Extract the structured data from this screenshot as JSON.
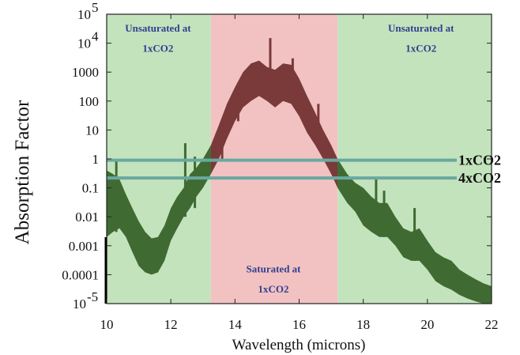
{
  "chart_data": {
    "type": "area",
    "title": "",
    "xlabel": "Wavelength (microns)",
    "ylabel": "Absorption Factor",
    "xlim": [
      10,
      22
    ],
    "ylim": [
      1e-05,
      100000.0
    ],
    "yscale": "log",
    "grid": false,
    "x_ticks": [
      {
        "value": 10,
        "label": "10"
      },
      {
        "value": 12,
        "label": "12"
      },
      {
        "value": 14,
        "label": "14"
      },
      {
        "value": 16,
        "label": "16"
      },
      {
        "value": 18,
        "label": "18"
      },
      {
        "value": 20,
        "label": "20"
      },
      {
        "value": 22,
        "label": "22"
      }
    ],
    "y_ticks": [
      {
        "value": 100000,
        "base": "10",
        "exp": "5"
      },
      {
        "value": 10000,
        "base": "10",
        "exp": "4"
      },
      {
        "value": 1000,
        "label": "1000"
      },
      {
        "value": 100,
        "label": "100"
      },
      {
        "value": 10,
        "label": "10"
      },
      {
        "value": 1,
        "label": "1"
      },
      {
        "value": 0.1,
        "label": "0.1"
      },
      {
        "value": 0.01,
        "label": "0.01"
      },
      {
        "value": 0.001,
        "label": "0.001"
      },
      {
        "value": 0.0001,
        "label": "0.0001"
      },
      {
        "value": 1e-05,
        "base": "10",
        "exp": "-5"
      }
    ],
    "regions": [
      {
        "x_start": 10,
        "x_end": 13.25,
        "color": "#c3e3bd",
        "label_lines": [
          "Unsaturated at",
          "1xCO2"
        ],
        "label_x": 11.6,
        "label_y": [
          25000,
          5000
        ]
      },
      {
        "x_start": 13.25,
        "x_end": 17.2,
        "color": "#f2c2c2",
        "label_lines": [
          "Saturated at",
          "1xCO2"
        ],
        "label_x": 15.2,
        "label_y": [
          0.00012,
          2.4e-05
        ]
      },
      {
        "x_start": 17.2,
        "x_end": 22,
        "color": "#c3e3bd",
        "label_lines": [
          "Unsaturated at",
          "1xCO2"
        ],
        "label_x": 19.8,
        "label_y": [
          25000,
          5000
        ]
      }
    ],
    "reference_lines": [
      {
        "name": "1xCO2",
        "y": 0.9,
        "label": "1xCO2",
        "color": "#6aa8a0"
      },
      {
        "name": "4xCO2",
        "y": 0.22,
        "label": "4xCO2",
        "color": "#6aa8a0"
      }
    ],
    "spectrum": {
      "color_unsaturated": "#3f6b33",
      "color_saturated": "#7a3a3a",
      "x": [
        10.0,
        10.2,
        10.4,
        10.6,
        10.8,
        11.0,
        11.2,
        11.4,
        11.6,
        11.8,
        12.0,
        12.2,
        12.4,
        12.6,
        12.8,
        13.0,
        13.25,
        13.5,
        13.75,
        14.0,
        14.25,
        14.5,
        14.75,
        15.0,
        15.25,
        15.5,
        15.75,
        16.0,
        16.25,
        16.5,
        16.75,
        17.0,
        17.2,
        17.5,
        17.75,
        18.0,
        18.25,
        18.5,
        18.75,
        19.0,
        19.25,
        19.5,
        19.75,
        20.0,
        20.25,
        20.5,
        20.75,
        21.0,
        21.25,
        21.5,
        21.75,
        22.0
      ],
      "upper": [
        0.4,
        0.3,
        0.2,
        0.06,
        0.02,
        0.007,
        0.003,
        0.0018,
        0.002,
        0.005,
        0.02,
        0.05,
        0.1,
        0.3,
        0.5,
        1,
        3,
        15,
        80,
        300,
        1000,
        2000,
        2500,
        1500,
        1200,
        2000,
        1800,
        600,
        150,
        40,
        10,
        3,
        1,
        0.3,
        0.15,
        0.1,
        0.05,
        0.03,
        0.03,
        0.01,
        0.004,
        0.003,
        0.004,
        0.0015,
        0.0006,
        0.0004,
        0.0003,
        0.00015,
        0.0001,
        7e-05,
        5e-05,
        4e-05
      ],
      "lower": [
        0.002,
        0.003,
        0.004,
        0.002,
        0.0006,
        0.0002,
        0.00012,
        0.0001,
        0.00012,
        0.0003,
        0.0015,
        0.004,
        0.01,
        0.02,
        0.05,
        0.1,
        0.3,
        1,
        5,
        20,
        60,
        100,
        150,
        100,
        60,
        100,
        80,
        30,
        8,
        3,
        1,
        0.3,
        0.1,
        0.03,
        0.015,
        0.005,
        0.003,
        0.002,
        0.002,
        0.001,
        0.0004,
        0.0003,
        0.0003,
        0.00015,
        6e-05,
        4e-05,
        3e-05,
        2e-05,
        1.5e-05,
        1.2e-05,
        1e-05,
        1e-05
      ],
      "spikes": [
        {
          "x": 10.3,
          "y": 0.9
        },
        {
          "x": 12.45,
          "y": 3.5
        },
        {
          "x": 12.75,
          "y": 1.2
        },
        {
          "x": 13.6,
          "y": 20
        },
        {
          "x": 14.1,
          "y": 200
        },
        {
          "x": 15.1,
          "y": 15000
        },
        {
          "x": 15.8,
          "y": 3000
        },
        {
          "x": 16.6,
          "y": 80
        },
        {
          "x": 18.4,
          "y": 0.2
        },
        {
          "x": 18.65,
          "y": 0.08
        },
        {
          "x": 19.6,
          "y": 0.02
        }
      ]
    }
  }
}
